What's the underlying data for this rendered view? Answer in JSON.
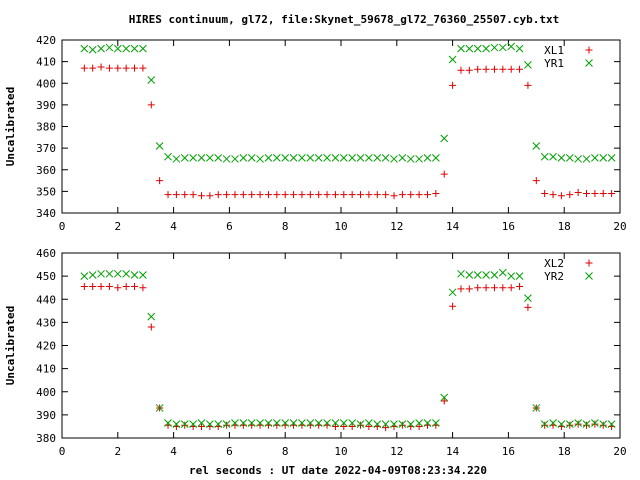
{
  "chart_data": {
    "title": "HIRES continuum, gl72, file:Skynet_59678_gl72_76360_25507.cyb.txt",
    "xlabel": "rel seconds : UT date 2022-04-09T08:23:34.220",
    "panels": [
      {
        "type": "scatter",
        "ylabel": "Uncalibrated",
        "xlim": [
          0,
          20
        ],
        "ylim": [
          340,
          420
        ],
        "xticks": [
          0,
          2,
          4,
          6,
          8,
          10,
          12,
          14,
          16,
          18,
          20
        ],
        "yticks": [
          340,
          350,
          360,
          370,
          380,
          390,
          400,
          410,
          420
        ],
        "legend_position": "top-right",
        "series": [
          {
            "name": "XL1",
            "marker": "plus",
            "color": "#e00000",
            "x": [
              0.8,
              1.1,
              1.4,
              1.7,
              2.0,
              2.3,
              2.6,
              2.9,
              3.2,
              3.5,
              3.8,
              4.1,
              4.4,
              4.7,
              5.0,
              5.3,
              5.6,
              5.9,
              6.2,
              6.5,
              6.8,
              7.1,
              7.4,
              7.7,
              8.0,
              8.3,
              8.6,
              8.9,
              9.2,
              9.5,
              9.8,
              10.1,
              10.4,
              10.7,
              11.0,
              11.3,
              11.6,
              11.9,
              12.2,
              12.5,
              12.8,
              13.1,
              13.4,
              13.7,
              14.0,
              14.3,
              14.6,
              14.9,
              15.2,
              15.5,
              15.8,
              16.1,
              16.4,
              16.7,
              17.0,
              17.3,
              17.6,
              17.9,
              18.2,
              18.5,
              18.8,
              19.1,
              19.4,
              19.7
            ],
            "y": [
              407,
              407,
              407.5,
              407,
              407,
              407,
              407,
              407,
              390,
              355,
              348.5,
              348.5,
              348.5,
              348.5,
              348,
              348,
              348.5,
              348.5,
              348.5,
              348.5,
              348.5,
              348.5,
              348.5,
              348.5,
              348.5,
              348.5,
              348.5,
              348.5,
              348.5,
              348.5,
              348.5,
              348.5,
              348.5,
              348.5,
              348.5,
              348.5,
              348.5,
              348,
              348.5,
              348.5,
              348.5,
              348.5,
              349,
              358,
              399,
              406,
              406,
              406.5,
              406.5,
              406.5,
              406.5,
              406.5,
              406.5,
              399,
              355,
              349,
              348.5,
              348,
              348.5,
              349.5,
              349,
              349,
              349,
              349
            ]
          },
          {
            "name": "YR1",
            "marker": "cross",
            "color": "#00a000",
            "x": [
              0.8,
              1.1,
              1.4,
              1.7,
              2.0,
              2.3,
              2.6,
              2.9,
              3.2,
              3.5,
              3.8,
              4.1,
              4.4,
              4.7,
              5.0,
              5.3,
              5.6,
              5.9,
              6.2,
              6.5,
              6.8,
              7.1,
              7.4,
              7.7,
              8.0,
              8.3,
              8.6,
              8.9,
              9.2,
              9.5,
              9.8,
              10.1,
              10.4,
              10.7,
              11.0,
              11.3,
              11.6,
              11.9,
              12.2,
              12.5,
              12.8,
              13.1,
              13.4,
              13.7,
              14.0,
              14.3,
              14.6,
              14.9,
              15.2,
              15.5,
              15.8,
              16.1,
              16.4,
              16.7,
              17.0,
              17.3,
              17.6,
              17.9,
              18.2,
              18.5,
              18.8,
              19.1,
              19.4,
              19.7
            ],
            "y": [
              416,
              415.5,
              416,
              416.5,
              416,
              416,
              416,
              416,
              401.5,
              371,
              366,
              365,
              365.5,
              365.5,
              365.5,
              365.5,
              365.5,
              365,
              365,
              365.5,
              365.5,
              365,
              365.5,
              365.5,
              365.5,
              365.5,
              365.5,
              365.5,
              365.5,
              365.5,
              365.5,
              365.5,
              365.5,
              365.5,
              365.5,
              365.5,
              365.5,
              365,
              365.5,
              365,
              365,
              365.5,
              365.5,
              374.5,
              411,
              416,
              416,
              416,
              416,
              416.5,
              416.5,
              417,
              416,
              408.5,
              371,
              366,
              366,
              365.5,
              365.5,
              365,
              365,
              365.5,
              365.5,
              365.5
            ]
          }
        ]
      },
      {
        "type": "scatter",
        "ylabel": "Uncalibrated",
        "xlim": [
          0,
          20
        ],
        "ylim": [
          380,
          460
        ],
        "xticks": [
          0,
          2,
          4,
          6,
          8,
          10,
          12,
          14,
          16,
          18,
          20
        ],
        "yticks": [
          380,
          390,
          400,
          410,
          420,
          430,
          440,
          450,
          460
        ],
        "legend_position": "top-right",
        "series": [
          {
            "name": "XL2",
            "marker": "plus",
            "color": "#e00000",
            "x": [
              0.8,
              1.1,
              1.4,
              1.7,
              2.0,
              2.3,
              2.6,
              2.9,
              3.2,
              3.5,
              3.8,
              4.1,
              4.4,
              4.7,
              5.0,
              5.3,
              5.6,
              5.9,
              6.2,
              6.5,
              6.8,
              7.1,
              7.4,
              7.7,
              8.0,
              8.3,
              8.6,
              8.9,
              9.2,
              9.5,
              9.8,
              10.1,
              10.4,
              10.7,
              11.0,
              11.3,
              11.6,
              11.9,
              12.2,
              12.5,
              12.8,
              13.1,
              13.4,
              13.7,
              14.0,
              14.3,
              14.6,
              14.9,
              15.2,
              15.5,
              15.8,
              16.1,
              16.4,
              16.7,
              17.0,
              17.3,
              17.6,
              17.9,
              18.2,
              18.5,
              18.8,
              19.1,
              19.4,
              19.7
            ],
            "y": [
              445.5,
              445.5,
              445.5,
              445.5,
              445,
              445.5,
              445.5,
              445,
              428,
              393,
              385.5,
              385,
              385.5,
              385,
              385,
              385,
              385,
              385.5,
              385.5,
              385.5,
              385.5,
              385.5,
              385.5,
              385.5,
              385.5,
              385.5,
              385.5,
              385.5,
              385.5,
              385.5,
              385,
              385,
              385,
              385.5,
              385,
              385,
              384.5,
              385,
              385.5,
              385,
              385,
              385.5,
              385.5,
              396,
              437,
              444.5,
              444.5,
              445,
              445,
              445,
              445,
              445,
              445.5,
              436.5,
              393,
              385.5,
              385.5,
              385,
              385.5,
              386,
              385.5,
              386,
              385.5,
              385
            ]
          },
          {
            "name": "YR2",
            "marker": "cross",
            "color": "#00a000",
            "x": [
              0.8,
              1.1,
              1.4,
              1.7,
              2.0,
              2.3,
              2.6,
              2.9,
              3.2,
              3.5,
              3.8,
              4.1,
              4.4,
              4.7,
              5.0,
              5.3,
              5.6,
              5.9,
              6.2,
              6.5,
              6.8,
              7.1,
              7.4,
              7.7,
              8.0,
              8.3,
              8.6,
              8.9,
              9.2,
              9.5,
              9.8,
              10.1,
              10.4,
              10.7,
              11.0,
              11.3,
              11.6,
              11.9,
              12.2,
              12.5,
              12.8,
              13.1,
              13.4,
              13.7,
              14.0,
              14.3,
              14.6,
              14.9,
              15.2,
              15.5,
              15.8,
              16.1,
              16.4,
              16.7,
              17.0,
              17.3,
              17.6,
              17.9,
              18.2,
              18.5,
              18.8,
              19.1,
              19.4,
              19.7
            ],
            "y": [
              450,
              450.5,
              451,
              451,
              451,
              451,
              450.5,
              450.5,
              432.5,
              393,
              386.5,
              386,
              386,
              386,
              386.5,
              386,
              386,
              386,
              386.5,
              386.5,
              386.5,
              386.5,
              386.5,
              386.5,
              386.5,
              386.5,
              386.5,
              386.5,
              386.5,
              386.5,
              386.5,
              386.5,
              386.5,
              386,
              386.5,
              386,
              386,
              386,
              386,
              386,
              386.5,
              386.5,
              386.5,
              397.5,
              443,
              451,
              450.5,
              450.5,
              450.5,
              450.5,
              451.5,
              450,
              450,
              440.5,
              393,
              386,
              386.5,
              386,
              386,
              386.5,
              386,
              386.5,
              386,
              386
            ]
          }
        ]
      }
    ]
  }
}
